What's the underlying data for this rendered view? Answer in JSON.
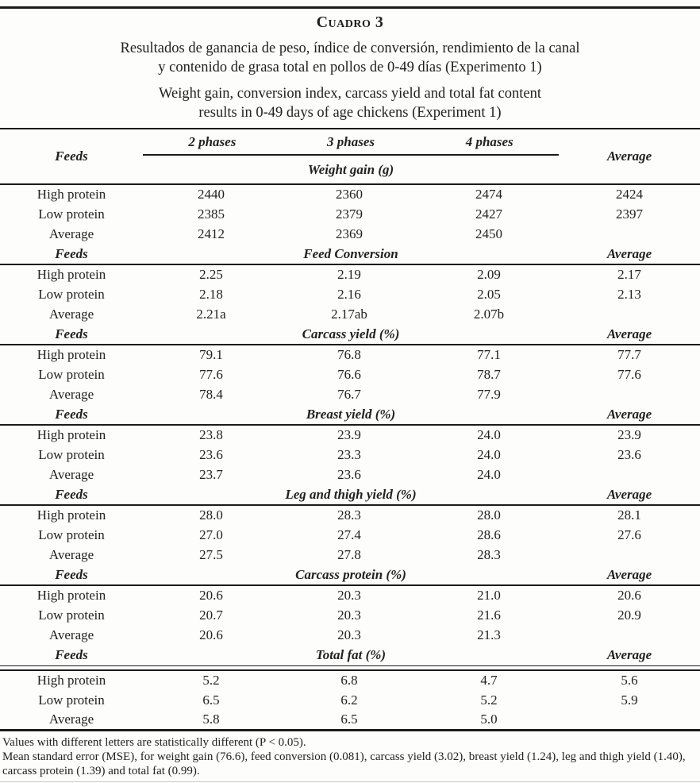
{
  "title": {
    "table_label": "Cuadro 3",
    "subtitle_es_line1": "Resultados de ganancia de peso, índice de conversión, rendimiento de la canal",
    "subtitle_es_line2": "y contenido de grasa total en pollos de 0-49 días (Experimento 1)",
    "subtitle_en_line1": "Weight gain, conversion index, carcass yield and total fat content",
    "subtitle_en_line2": "results in 0-49 days of age chickens (Experiment 1)"
  },
  "table": {
    "feeds_header": "Feeds",
    "average_header": "Average",
    "phase_headers": [
      "2 phases",
      "3 phases",
      "4 phases"
    ],
    "sections": [
      {
        "title": "Weight gain (g)",
        "rows": [
          {
            "label": "High protein",
            "values": [
              "2440",
              "2360",
              "2474",
              "2424"
            ]
          },
          {
            "label": "Low protein",
            "values": [
              "2385",
              "2379",
              "2427",
              "2397"
            ]
          },
          {
            "label": "Average",
            "values": [
              "2412",
              "2369",
              "2450",
              ""
            ]
          }
        ]
      },
      {
        "title": "Feed Conversion",
        "rows": [
          {
            "label": "High protein",
            "values": [
              "2.25",
              "2.19",
              "2.09",
              "2.17"
            ]
          },
          {
            "label": "Low protein",
            "values": [
              "2.18",
              "2.16",
              "2.05",
              "2.13"
            ]
          },
          {
            "label": "Average",
            "values": [
              "2.21a",
              "2.17ab",
              "2.07b",
              ""
            ]
          }
        ]
      },
      {
        "title": "Carcass yield (%)",
        "rows": [
          {
            "label": "High protein",
            "values": [
              "79.1",
              "76.8",
              "77.1",
              "77.7"
            ]
          },
          {
            "label": "Low protein",
            "values": [
              "77.6",
              "76.6",
              "78.7",
              "77.6"
            ]
          },
          {
            "label": "Average",
            "values": [
              "78.4",
              "76.7",
              "77.9",
              ""
            ]
          }
        ]
      },
      {
        "title": "Breast yield (%)",
        "rows": [
          {
            "label": "High protein",
            "values": [
              "23.8",
              "23.9",
              "24.0",
              "23.9"
            ]
          },
          {
            "label": "Low protein",
            "values": [
              "23.6",
              "23.3",
              "24.0",
              "23.6"
            ]
          },
          {
            "label": "Average",
            "values": [
              "23.7",
              "23.6",
              "24.0",
              ""
            ]
          }
        ]
      },
      {
        "title": "Leg and thigh yield (%)",
        "rows": [
          {
            "label": "High protein",
            "values": [
              "28.0",
              "28.3",
              "28.0",
              "28.1"
            ]
          },
          {
            "label": "Low protein",
            "values": [
              "27.0",
              "27.4",
              "28.6",
              "27.6"
            ]
          },
          {
            "label": "Average",
            "values": [
              "27.5",
              "27.8",
              "28.3",
              ""
            ]
          }
        ]
      },
      {
        "title": "Carcass protein (%)",
        "rows": [
          {
            "label": "High protein",
            "values": [
              "20.6",
              "20.3",
              "21.0",
              "20.6"
            ]
          },
          {
            "label": "Low protein",
            "values": [
              "20.7",
              "20.3",
              "21.6",
              "20.9"
            ]
          },
          {
            "label": "Average",
            "values": [
              "20.6",
              "20.3",
              "21.3",
              ""
            ]
          }
        ]
      },
      {
        "title": "Total fat (%)",
        "rows": [
          {
            "label": "High protein",
            "values": [
              "5.2",
              "6.8",
              "4.7",
              "5.6"
            ]
          },
          {
            "label": "Low protein",
            "values": [
              "6.5",
              "6.2",
              "5.2",
              "5.9"
            ]
          },
          {
            "label": "Average",
            "values": [
              "5.8",
              "6.5",
              "5.0",
              ""
            ]
          }
        ]
      }
    ]
  },
  "footnotes": {
    "line1": "Values with different letters are statistically different (P < 0.05).",
    "line2": "Mean standard error (MSE), for weight gain (76.6), feed conversion (0.081), carcass yield (3.02), breast yield (1.24), leg and thigh yield (1.40), carcass protein (1.39) and total fat (0.99)."
  }
}
